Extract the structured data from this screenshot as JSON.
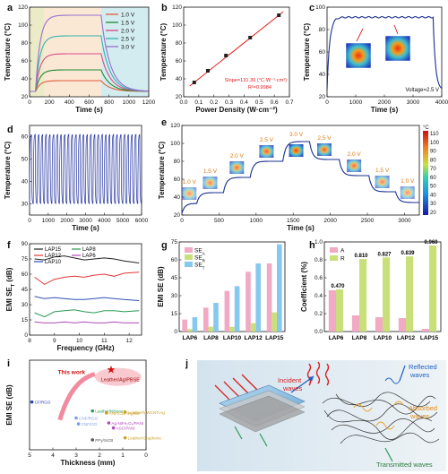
{
  "chart_data": [
    {
      "id": "a",
      "label": "a",
      "type": "line",
      "xlabel": "Time (s)",
      "ylabel": "Temperature (°C)",
      "xlim": [
        0,
        1200
      ],
      "ylim": [
        20,
        120
      ],
      "xticks": [
        "0",
        "200",
        "400",
        "600",
        "800",
        "1000",
        "1200"
      ],
      "yticks": [
        "20",
        "40",
        "60",
        "80",
        "100",
        "120"
      ],
      "series": [
        {
          "name": "1.0 V",
          "color": "#e35a3a",
          "base": 26,
          "peak": 38,
          "on": 60,
          "off": 720
        },
        {
          "name": "1.5 V",
          "color": "#1f8a33",
          "base": 26,
          "peak": 50,
          "on": 60,
          "off": 720
        },
        {
          "name": "2.0 V",
          "color": "#d94a8a",
          "base": 26,
          "peak": 68,
          "on": 60,
          "off": 720
        },
        {
          "name": "2.5 V",
          "color": "#34b3ae",
          "base": 26,
          "peak": 88,
          "on": 60,
          "off": 720
        },
        {
          "name": "3.0 V",
          "color": "#9a6fcf",
          "base": 26,
          "peak": 111,
          "on": 60,
          "off": 720
        }
      ]
    },
    {
      "id": "b",
      "label": "b",
      "type": "scatter",
      "xlabel": "Power Density (W·cm⁻²)",
      "ylabel": "Temperature (°C)",
      "xlim": [
        0,
        0.7
      ],
      "ylim": [
        20,
        120
      ],
      "xticks": [
        "0.0",
        "0.1",
        "0.2",
        "0.3",
        "0.4",
        "0.5",
        "0.6",
        "0.7"
      ],
      "yticks": [
        "20",
        "40",
        "60",
        "80",
        "100",
        "120"
      ],
      "x": [
        0.07,
        0.16,
        0.28,
        0.44,
        0.63
      ],
      "y": [
        36,
        49,
        66,
        86,
        111
      ],
      "annotation1": "Slope=131.39 (°C·W⁻¹·cm²)",
      "annotation2": "R²=0.9984"
    },
    {
      "id": "c",
      "label": "c",
      "type": "line",
      "xlabel": "Time (s)",
      "ylabel": "Temperature (°C)",
      "xlim": [
        0,
        4000
      ],
      "ylim": [
        20,
        100
      ],
      "xticks": [
        "0",
        "1000",
        "2000",
        "3000",
        "4000"
      ],
      "yticks": [
        "20",
        "40",
        "60",
        "80",
        "100"
      ],
      "annotation": "Voltage=2.5 V"
    },
    {
      "id": "d",
      "label": "d",
      "type": "line",
      "xlabel": "Time (s)",
      "ylabel": "Temperature (°C)",
      "xlim": [
        0,
        6000
      ],
      "ylim": [
        25,
        65
      ],
      "xticks": [
        "0",
        "1000",
        "2000",
        "3000",
        "4000",
        "5000",
        "6000"
      ],
      "yticks": [
        "30",
        "40",
        "50",
        "60"
      ],
      "cycles": 30,
      "min": 30,
      "max": 61
    },
    {
      "id": "e",
      "label": "e",
      "type": "line",
      "xlabel": "Time (s)",
      "ylabel": "Temperature (°C)",
      "xlim": [
        0,
        3200
      ],
      "ylim": [
        20,
        120
      ],
      "xticks": [
        "0",
        "500",
        "1000",
        "1500",
        "2000",
        "2500",
        "3000"
      ],
      "yticks": [
        "20",
        "40",
        "60",
        "80",
        "100",
        "120"
      ],
      "steps": [
        {
          "label": "1.0 V",
          "t0": 0,
          "t1": 200,
          "T": 33
        },
        {
          "label": "1.5 V",
          "t0": 200,
          "t1": 560,
          "T": 45
        },
        {
          "label": "2.0 V",
          "t0": 560,
          "t1": 920,
          "T": 62
        },
        {
          "label": "2.5 V",
          "t0": 920,
          "t1": 1360,
          "T": 80
        },
        {
          "label": "3.0 V",
          "t0": 1360,
          "t1": 1720,
          "T": 102
        },
        {
          "label": "2.5 V",
          "t0": 1720,
          "t1": 2120,
          "T": 82
        },
        {
          "label": "2.0 V",
          "t0": 2120,
          "t1": 2520,
          "T": 64
        },
        {
          "label": "1.5 V",
          "t0": 2520,
          "t1": 2880,
          "T": 46
        },
        {
          "label": "1.0 V",
          "t0": 2880,
          "t1": 3200,
          "T": 34
        }
      ],
      "colorbar_unit": "°C",
      "colorbar_ticks": [
        "110",
        "100",
        "90",
        "80",
        "70",
        "60",
        "50",
        "40",
        "30",
        "20"
      ]
    },
    {
      "id": "f",
      "label": "f",
      "type": "line",
      "xlabel": "Frequency (GHz)",
      "ylabel": "EMI SE_T (dB)",
      "xlim": [
        8,
        12.5
      ],
      "ylim": [
        0,
        90
      ],
      "xticks": [
        "8",
        "9",
        "10",
        "11",
        "12"
      ],
      "yticks": [
        "0",
        "15",
        "30",
        "45",
        "60",
        "75",
        "90"
      ],
      "x": [
        8.2,
        8.6,
        9.0,
        9.4,
        9.8,
        10.2,
        10.6,
        11.0,
        11.4,
        11.8,
        12.4
      ],
      "series": [
        {
          "name": "LAP15",
          "color": "#222222",
          "values": [
            75,
            74,
            77,
            78,
            76,
            74,
            75,
            76,
            75,
            73,
            71
          ]
        },
        {
          "name": "LAP12",
          "color": "#e03838",
          "values": [
            57,
            50,
            55,
            57,
            58,
            57,
            59,
            60,
            58,
            61,
            62
          ]
        },
        {
          "name": "LAP10",
          "color": "#3050b0",
          "values": [
            38,
            36,
            37,
            36,
            35,
            35,
            36,
            37,
            36,
            35,
            34
          ]
        },
        {
          "name": "LAP8",
          "color": "#2a9a56",
          "values": [
            22,
            18,
            23,
            24,
            25,
            23,
            22,
            24,
            24,
            23,
            24
          ]
        },
        {
          "name": "LAP6",
          "color": "#b04ab8",
          "values": [
            13,
            12,
            12,
            13,
            12,
            13,
            12,
            12,
            13,
            12,
            12
          ]
        }
      ]
    },
    {
      "id": "g",
      "label": "g",
      "type": "bar",
      "xlabel": "",
      "ylabel": "EMI SE (dB)",
      "ylim": [
        0,
        75
      ],
      "yticks": [
        "0",
        "15",
        "30",
        "45",
        "60",
        "75"
      ],
      "categories": [
        "LAP6",
        "LAP8",
        "LAP10",
        "LAP12",
        "LAP15"
      ],
      "series": [
        {
          "name": "SE_A",
          "color": "#f1a9c4",
          "values": [
            10,
            20,
            34,
            50,
            57
          ]
        },
        {
          "name": "SE_R",
          "color": "#c9e07a",
          "values": [
            2,
            4,
            4,
            7,
            16
          ]
        },
        {
          "name": "SE_T",
          "color": "#85c8f0",
          "values": [
            12,
            24,
            38,
            57,
            73
          ]
        }
      ]
    },
    {
      "id": "h",
      "label": "h",
      "type": "bar",
      "xlabel": "",
      "ylabel": "Coefficient (%)",
      "ylim": [
        0,
        1.0
      ],
      "yticks": [
        "0.0",
        "0.2",
        "0.4",
        "0.6",
        "0.8",
        "1.0"
      ],
      "categories": [
        "LAP6",
        "LAP8",
        "LAP10",
        "LAP12",
        "LAP15"
      ],
      "series": [
        {
          "name": "A",
          "color": "#f1a9c4",
          "values": [
            0.46,
            0.18,
            0.16,
            0.15,
            0.03
          ]
        },
        {
          "name": "R",
          "color": "#c9e07a",
          "values": [
            0.47,
            0.81,
            0.827,
            0.839,
            0.96
          ]
        }
      ],
      "data_labels": [
        "0.470",
        "0.810",
        "0.827",
        "0.839",
        "0.960"
      ]
    },
    {
      "id": "i",
      "label": "i",
      "type": "scatter",
      "xlabel": "Thickness (mm)",
      "ylabel": "EMI SE (dB)",
      "xlim": [
        5,
        0
      ],
      "xticks": [
        "5",
        "4",
        "3",
        "2",
        "1",
        "0"
      ],
      "ylim": [
        0,
        90
      ],
      "title": "This work",
      "highlight": {
        "label": "Leather/Ag/PBSE",
        "x": 1.5,
        "y": 75
      },
      "points": [
        {
          "label": "CF/RGO",
          "x": 4.9,
          "y": 48,
          "color": "#2a3fb0"
        },
        {
          "label": "CNF/RGO",
          "x": 3.0,
          "y": 32,
          "color": "#7f9fe0"
        },
        {
          "label": "CNF/GO",
          "x": 2.9,
          "y": 26,
          "color": "#7f9fe0"
        },
        {
          "label": "Leather/MXene",
          "x": 2.3,
          "y": 39,
          "color": "#2a9a56"
        },
        {
          "label": "ANF/CNF/AgNW",
          "x": 1.7,
          "y": 37,
          "color": "#c9a020"
        },
        {
          "label": "Leather/MWCNT/Ag",
          "x": 0.9,
          "y": 38,
          "color": "#c9a020"
        },
        {
          "label": "Ag-NiFe₂O₄/PANI",
          "x": 1.6,
          "y": 27,
          "color": "#b04ab8"
        },
        {
          "label": "ASC/PANI",
          "x": 1.4,
          "y": 22,
          "color": "#b04ab8"
        },
        {
          "label": "PPy/SiCB",
          "x": 2.3,
          "y": 10,
          "color": "#555555"
        },
        {
          "label": "Leather/Graphene",
          "x": 0.9,
          "y": 12,
          "color": "#c9a020"
        }
      ]
    }
  ],
  "diagram_j": {
    "label": "j",
    "incident": "Incident waves",
    "reflected": "Reflected waves",
    "absorbed": "Absorbed waves",
    "transmitted": "Transmitted waves"
  }
}
